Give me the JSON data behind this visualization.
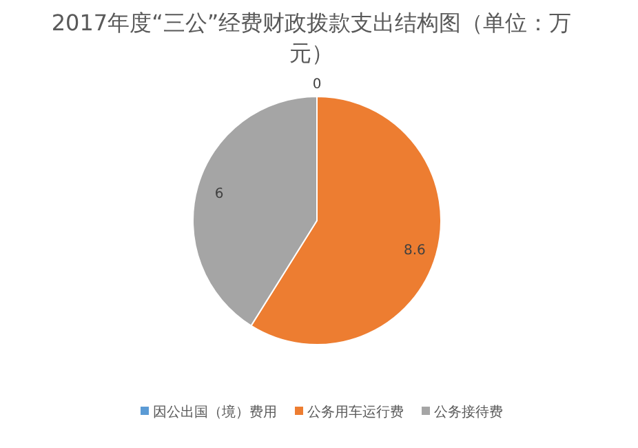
{
  "chart_data": {
    "type": "pie",
    "title": "2017年度“三公”经费财政拨款支出结构图（单位：万元）",
    "categories": [
      "因公出国（境）费用",
      "公务用车运行费",
      "公务接待费"
    ],
    "values": [
      0,
      8.6,
      6
    ],
    "value_labels": [
      "0",
      "8.6",
      "6"
    ],
    "colors": [
      "#5b9bd5",
      "#ed7d31",
      "#a5a5a5"
    ],
    "legend": "bottom"
  }
}
